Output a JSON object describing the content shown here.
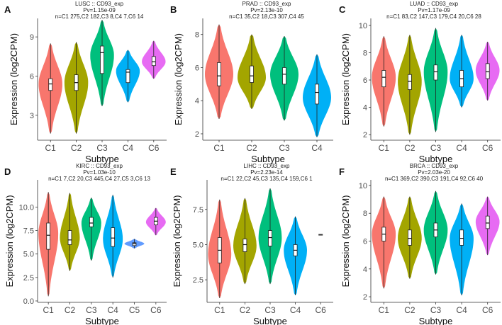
{
  "colors": {
    "C1": "#F8766D",
    "C2": "#A3A500",
    "C3": "#00BF7D",
    "C4": "#00B0F6",
    "C5": "#619CFF",
    "C6": "#E76BF3"
  },
  "chart_data": [
    {
      "type": "violin",
      "letter": "A",
      "title": "LUSC :: CD93_exp",
      "pvalue": "Pv=1.15e-09",
      "counts": "n=C1 275,C2 182,C3 8,C4 7,C6 14",
      "xlabel": "Subtype",
      "ylabel": "Expression (log2CPM)",
      "ylim": [
        1.2,
        10.2
      ],
      "yticks": [
        3,
        6,
        9
      ],
      "groups": [
        {
          "name": "C1",
          "min": 1.6,
          "max": 8.5,
          "q1": 4.9,
          "median": 5.4,
          "q3": 5.8,
          "peak": 5.4
        },
        {
          "name": "C2",
          "min": 1.6,
          "max": 8.6,
          "q1": 4.9,
          "median": 5.5,
          "q3": 6.1,
          "peak": 5.5
        },
        {
          "name": "C3",
          "min": 3.7,
          "max": 10.3,
          "q1": 6.2,
          "median": 7.8,
          "q3": 8.3,
          "peak": 7.6
        },
        {
          "name": "C4",
          "min": 4.0,
          "max": 8.0,
          "q1": 5.5,
          "median": 6.3,
          "q3": 6.5,
          "peak": 6.4
        },
        {
          "name": "C6",
          "min": 5.8,
          "max": 8.7,
          "q1": 6.8,
          "median": 7.1,
          "q3": 7.5,
          "peak": 7.1
        }
      ]
    },
    {
      "type": "violin",
      "letter": "B",
      "title": "PRAD :: CD93_exp",
      "pvalue": "Pv=2.13e-10",
      "counts": "n=C1 35,C2 18,C3 307,C4 45",
      "xlabel": "Subtype",
      "ylabel": "Expression (log2CPM)",
      "ylim": [
        1.7,
        8.8
      ],
      "yticks": [
        2,
        4,
        6,
        8
      ],
      "groups": [
        {
          "name": "C1",
          "min": 2.9,
          "max": 8.6,
          "q1": 4.9,
          "median": 5.5,
          "q3": 6.3,
          "peak": 5.6
        },
        {
          "name": "C2",
          "min": 3.5,
          "max": 8.0,
          "q1": 5.1,
          "median": 5.5,
          "q3": 6.1,
          "peak": 5.4
        },
        {
          "name": "C3",
          "min": 2.8,
          "max": 7.9,
          "q1": 5.0,
          "median": 5.6,
          "q3": 6.0,
          "peak": 5.6
        },
        {
          "name": "C4",
          "min": 1.8,
          "max": 6.8,
          "q1": 3.8,
          "median": 4.5,
          "q3": 5.0,
          "peak": 4.2
        }
      ]
    },
    {
      "type": "violin",
      "letter": "C",
      "title": "LUAD :: CD93_exp",
      "pvalue": "Pv=1.17e-09",
      "counts": "n=C1 83,C2 147,C3 179,C4 20,C6 28",
      "xlabel": "Subtype",
      "ylabel": "Expression (log2CPM)",
      "ylim": [
        1.7,
        10.3
      ],
      "yticks": [
        2,
        4,
        6,
        8,
        10
      ],
      "groups": [
        {
          "name": "C1",
          "min": 2.6,
          "max": 9.2,
          "q1": 5.5,
          "median": 6.2,
          "q3": 6.7,
          "peak": 6.2
        },
        {
          "name": "C2",
          "min": 2.0,
          "max": 9.3,
          "q1": 5.3,
          "median": 5.9,
          "q3": 6.4,
          "peak": 5.9
        },
        {
          "name": "C3",
          "min": 2.2,
          "max": 9.8,
          "q1": 6.0,
          "median": 6.6,
          "q3": 7.1,
          "peak": 6.6
        },
        {
          "name": "C4",
          "min": 4.0,
          "max": 9.3,
          "q1": 5.5,
          "median": 6.1,
          "q3": 6.7,
          "peak": 6.1
        },
        {
          "name": "C6",
          "min": 4.5,
          "max": 8.8,
          "q1": 6.1,
          "median": 6.6,
          "q3": 7.2,
          "peak": 6.7
        }
      ]
    },
    {
      "type": "violin",
      "letter": "D",
      "title": "KIRC :: CD93_exp",
      "pvalue": "Pv=1.03e-10",
      "counts": "n=C1 7,C2 20,C3 445,C4 27,C5 3,C6 13",
      "xlabel": "Subtype",
      "ylabel": "Expression (log2CPM)",
      "ylim": [
        0,
        12.6
      ],
      "yticks": [
        0.0,
        2.5,
        5.0,
        7.5,
        10.0
      ],
      "ytickfmt": 1,
      "groups": [
        {
          "name": "C1",
          "min": 0.5,
          "max": 11.6,
          "q1": 5.5,
          "median": 7.0,
          "q3": 8.3,
          "peak": 7.2
        },
        {
          "name": "C2",
          "min": 3.2,
          "max": 11.5,
          "q1": 6.0,
          "median": 6.5,
          "q3": 7.5,
          "peak": 6.7
        },
        {
          "name": "C3",
          "min": 4.3,
          "max": 11.0,
          "q1": 7.9,
          "median": 8.3,
          "q3": 8.9,
          "peak": 8.3
        },
        {
          "name": "C4",
          "min": 2.5,
          "max": 11.3,
          "q1": 5.8,
          "median": 6.7,
          "q3": 7.8,
          "peak": 6.6
        },
        {
          "name": "C5",
          "min": 5.6,
          "max": 6.6,
          "q1": 5.9,
          "median": 6.1,
          "q3": 6.2,
          "peak": 6.1
        },
        {
          "name": "C6",
          "min": 7.0,
          "max": 9.9,
          "q1": 8.1,
          "median": 8.5,
          "q3": 8.9,
          "peak": 8.4
        }
      ]
    },
    {
      "type": "violin",
      "letter": "E",
      "title": "LIHC :: CD93_exp",
      "pvalue": "Pv=2.23e-14",
      "counts": "n=C1 22,C2 45,C3 135,C4 159,C6 1",
      "xlabel": "Subtype",
      "ylabel": "Expression (log2CPM)",
      "ylim": [
        1.0,
        9.4
      ],
      "yticks": [
        2.5,
        5.0,
        7.5
      ],
      "ytickfmt": 1,
      "groups": [
        {
          "name": "C1",
          "min": 1.2,
          "max": 8.2,
          "q1": 3.7,
          "median": 4.6,
          "q3": 5.5,
          "peak": 4.3
        },
        {
          "name": "C2",
          "min": 2.2,
          "max": 8.3,
          "q1": 4.5,
          "median": 5.0,
          "q3": 5.4,
          "peak": 4.9
        },
        {
          "name": "C3",
          "min": 2.2,
          "max": 9.0,
          "q1": 4.9,
          "median": 5.5,
          "q3": 6.0,
          "peak": 5.5
        },
        {
          "name": "C4",
          "min": 1.4,
          "max": 7.0,
          "q1": 4.2,
          "median": 4.6,
          "q3": 5.0,
          "peak": 4.6
        },
        {
          "name": "C6",
          "min": 5.7,
          "max": 5.7,
          "q1": 5.7,
          "median": 5.7,
          "q3": 5.7,
          "peak": 5.7
        }
      ]
    },
    {
      "type": "violin",
      "letter": "F",
      "title": "BRCA :: CD93_exp",
      "pvalue": "Pv=2.03e-20",
      "counts": "n=C1 369,C2 390,C3 191,C4 92,C6 40",
      "xlabel": "Subtype",
      "ylabel": "Expression (log2CPM)",
      "ylim": [
        1.7,
        10.2
      ],
      "yticks": [
        2,
        4,
        6,
        8,
        10
      ],
      "groups": [
        {
          "name": "C1",
          "min": 2.6,
          "max": 9.2,
          "q1": 6.0,
          "median": 6.5,
          "q3": 7.0,
          "peak": 6.5
        },
        {
          "name": "C2",
          "min": 3.3,
          "max": 9.2,
          "q1": 5.7,
          "median": 6.2,
          "q3": 6.8,
          "peak": 6.2
        },
        {
          "name": "C3",
          "min": 3.6,
          "max": 9.6,
          "q1": 6.3,
          "median": 6.8,
          "q3": 7.3,
          "peak": 6.8
        },
        {
          "name": "C4",
          "min": 2.1,
          "max": 8.7,
          "q1": 5.7,
          "median": 6.2,
          "q3": 6.8,
          "peak": 6.2
        },
        {
          "name": "C6",
          "min": 5.0,
          "max": 9.2,
          "q1": 6.9,
          "median": 7.3,
          "q3": 7.8,
          "peak": 7.4
        }
      ]
    }
  ]
}
